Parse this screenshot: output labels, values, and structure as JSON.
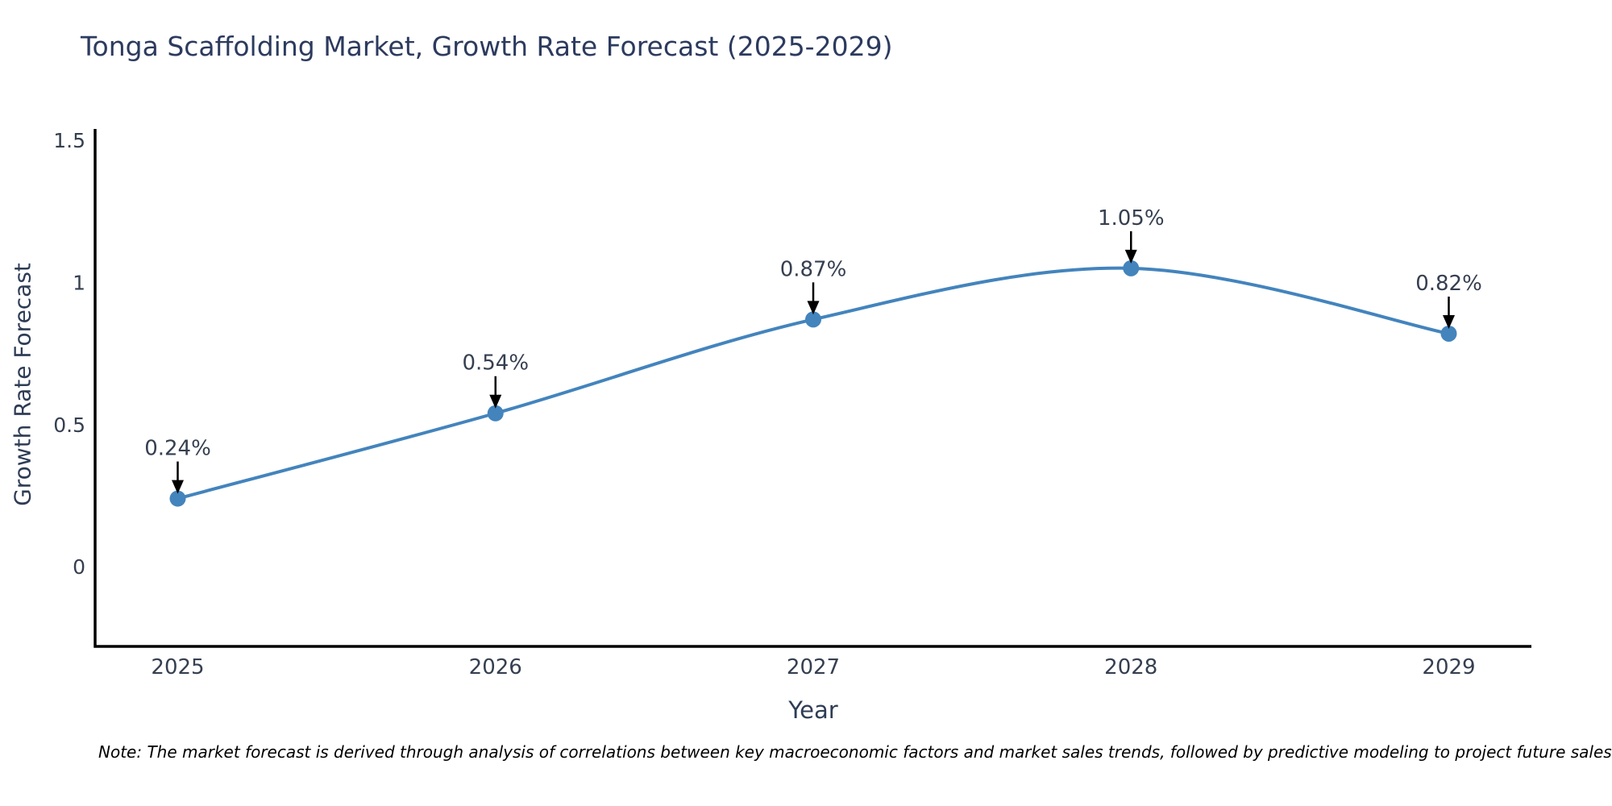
{
  "page": {
    "note": "Note: The market forecast is derived through analysis of correlations between key macroeconomic factors and market sales trends, followed by predictive modeling to project future sales"
  },
  "chart_data": {
    "type": "line",
    "title": "Tonga Scaffolding Market, Growth Rate Forecast (2025-2029)",
    "xlabel": "Year",
    "ylabel": "Growth Rate Forecast",
    "x": [
      2025,
      2026,
      2027,
      2028,
      2029
    ],
    "values": [
      0.24,
      0.54,
      0.87,
      1.05,
      0.82
    ],
    "point_labels": [
      "0.24%",
      "0.54%",
      "0.87%",
      "1.05%",
      "0.82%"
    ],
    "xticks": [
      2025,
      2026,
      2027,
      2028,
      2029
    ],
    "xtick_labels": [
      "2025",
      "2026",
      "2027",
      "2028",
      "2029"
    ],
    "yticks": [
      0,
      0.5,
      1,
      1.5
    ],
    "ytick_labels": [
      "0",
      "0.5",
      "1",
      "1.5"
    ],
    "xlim": [
      2024.74,
      2029.26
    ],
    "ylim": [
      -0.28,
      1.54
    ],
    "grid": false,
    "legend": "none",
    "curve": "spline",
    "colors": {
      "line": "#4384bd",
      "marker": "#4384bd",
      "axis": "#000000",
      "arrow": "#000000",
      "tick_text": "#353f50",
      "annotation_text": "#353f50"
    }
  }
}
